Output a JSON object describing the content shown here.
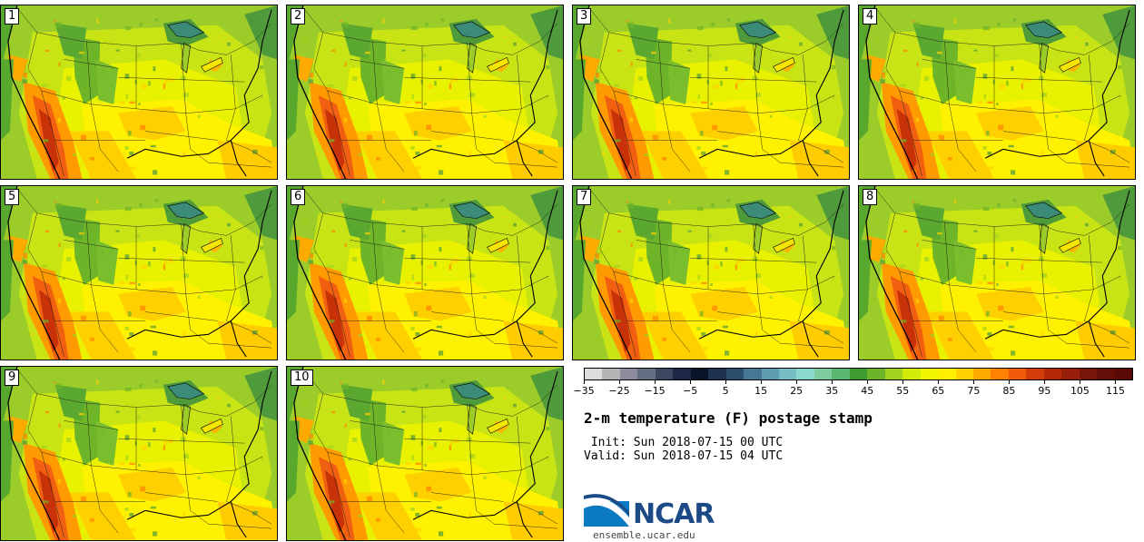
{
  "members": [
    {
      "label": "1"
    },
    {
      "label": "2"
    },
    {
      "label": "3"
    },
    {
      "label": "4"
    },
    {
      "label": "5"
    },
    {
      "label": "6"
    },
    {
      "label": "7"
    },
    {
      "label": "8"
    },
    {
      "label": "9"
    },
    {
      "label": "10"
    }
  ],
  "colorbar": {
    "min": -35,
    "max": 120,
    "step": 5,
    "tick_labels": [
      "−35",
      "−25",
      "−15",
      "−5",
      "5",
      "15",
      "25",
      "35",
      "45",
      "55",
      "65",
      "75",
      "85",
      "95",
      "105",
      "115"
    ],
    "colors": [
      "#dcdcdc",
      "#b4b4b4",
      "#8c8c9c",
      "#646e82",
      "#3c465e",
      "#1e2846",
      "#0a1428",
      "#1e3250",
      "#2e4e6e",
      "#467894",
      "#5f9eb2",
      "#76bec4",
      "#8ad7cc",
      "#7ecba0",
      "#5ab56e",
      "#409a32",
      "#6eb428",
      "#a0d21e",
      "#d2ec0a",
      "#f0f500",
      "#fff000",
      "#ffd200",
      "#ffaa00",
      "#ff8200",
      "#f05a0a",
      "#d23c0a",
      "#b42808",
      "#961e0a",
      "#781408",
      "#641008",
      "#5a0a06"
    ]
  },
  "title": "2-m temperature (F) postage stamp",
  "init_line": " Init: Sun 2018-07-15 00 UTC",
  "valid_line": "Valid: Sun 2018-07-15 04 UTC",
  "logo": {
    "text": "NCAR",
    "url_text": "ensemble.ucar.edu",
    "brand_color": "#1b4a86",
    "accent_color": "#0a7ac2"
  }
}
